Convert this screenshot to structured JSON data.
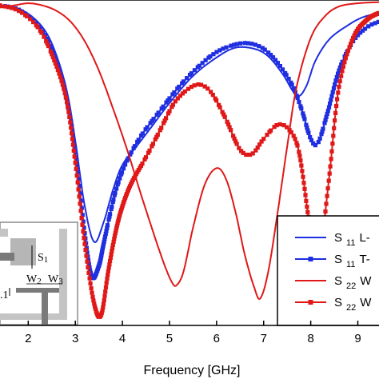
{
  "chart_data": {
    "type": "line",
    "xlabel": "Frequency [GHz]",
    "xlim": [
      1.4,
      9.45
    ],
    "ylim": [
      -30,
      0
    ],
    "x_ticks": [
      "2",
      "3",
      "4",
      "5",
      "6",
      "7",
      "8",
      "9"
    ],
    "legend_placement": "bottom-right",
    "legend_labels": [
      {
        "s": "S",
        "sub": "11",
        "rest": "L-"
      },
      {
        "s": "S",
        "sub": "11",
        "rest": "T-"
      },
      {
        "s": "S",
        "sub": "22",
        "rest": "W"
      },
      {
        "s": "S",
        "sub": "22",
        "rest": "W"
      }
    ],
    "series": [
      {
        "color": "#1e2ee0",
        "marker": false,
        "x": [
          1.4,
          1.8,
          2.2,
          2.5,
          2.8,
          3.0,
          3.2,
          3.4,
          3.6,
          3.8,
          4.0,
          4.3,
          4.6,
          5.0,
          5.5,
          6.0,
          6.4,
          6.8,
          7.1,
          7.4,
          7.7,
          7.9,
          8.1,
          8.4,
          8.8,
          9.1,
          9.45
        ],
        "y": [
          -0.5,
          -0.8,
          -2.0,
          -4.0,
          -8.0,
          -13.0,
          -19.0,
          -22.3,
          -20.5,
          -17.5,
          -15.2,
          -13.5,
          -11.8,
          -9.5,
          -7.0,
          -5.3,
          -4.4,
          -4.5,
          -5.2,
          -6.8,
          -8.8,
          -8.0,
          -5.6,
          -3.6,
          -2.3,
          -1.6,
          -1.2
        ]
      },
      {
        "color": "#1e2ee0",
        "marker": true,
        "x": [
          1.4,
          1.8,
          2.2,
          2.5,
          2.8,
          3.0,
          3.2,
          3.35,
          3.5,
          3.6,
          3.75,
          3.9,
          4.1,
          4.4,
          4.8,
          5.2,
          5.6,
          6.0,
          6.4,
          6.7,
          7.0,
          7.3,
          7.6,
          7.8,
          8.0,
          8.15,
          8.35,
          8.6,
          8.9,
          9.2,
          9.45
        ],
        "y": [
          -0.5,
          -0.9,
          -2.3,
          -4.5,
          -8.8,
          -14.0,
          -21.5,
          -25.5,
          -24.5,
          -22.5,
          -19.5,
          -17.0,
          -14.8,
          -12.5,
          -10.2,
          -8.0,
          -6.2,
          -4.8,
          -4.1,
          -4.0,
          -4.5,
          -5.8,
          -7.8,
          -10.0,
          -12.8,
          -13.2,
          -10.5,
          -6.5,
          -3.8,
          -2.5,
          -2.0
        ]
      },
      {
        "color": "#e01818",
        "marker": false,
        "x": [
          1.4,
          1.7,
          2.0,
          2.3,
          2.6,
          2.9,
          3.2,
          3.5,
          3.8,
          4.1,
          4.4,
          4.7,
          4.9,
          5.05,
          5.15,
          5.3,
          5.5,
          5.75,
          6.0,
          6.2,
          6.4,
          6.6,
          6.8,
          6.93,
          7.1,
          7.3,
          7.5,
          7.7,
          8.0,
          8.3,
          8.6,
          9.0,
          9.45
        ],
        "y": [
          -0.7,
          -0.5,
          -0.3,
          -0.5,
          -1.0,
          -2.0,
          -3.8,
          -6.5,
          -10.0,
          -13.8,
          -18.0,
          -22.0,
          -24.5,
          -26.0,
          -26.3,
          -25.0,
          -21.0,
          -17.0,
          -15.5,
          -16.5,
          -19.5,
          -23.5,
          -26.5,
          -27.5,
          -25.0,
          -19.5,
          -13.5,
          -8.0,
          -3.5,
          -1.5,
          -0.6,
          -0.3,
          -0.2
        ]
      },
      {
        "color": "#e01818",
        "marker": true,
        "x": [
          1.4,
          1.8,
          2.2,
          2.5,
          2.8,
          3.0,
          3.2,
          3.4,
          3.55,
          3.7,
          3.85,
          4.0,
          4.2,
          4.5,
          4.8,
          5.1,
          5.4,
          5.65,
          5.9,
          6.2,
          6.5,
          6.75,
          7.0,
          7.3,
          7.55,
          7.75,
          7.95,
          8.1,
          8.2,
          8.4,
          8.6,
          8.9,
          9.2,
          9.45
        ],
        "y": [
          -0.5,
          -1.0,
          -2.5,
          -5.0,
          -9.0,
          -15.0,
          -22.5,
          -28.0,
          -29.0,
          -25.0,
          -21.5,
          -19.0,
          -16.8,
          -14.5,
          -12.0,
          -9.5,
          -8.2,
          -7.8,
          -8.6,
          -11.0,
          -13.8,
          -14.2,
          -12.8,
          -11.5,
          -12.0,
          -14.0,
          -20.0,
          -24.3,
          -23.5,
          -16.0,
          -8.0,
          -3.5,
          -1.8,
          -1.2
        ]
      }
    ]
  }
}
